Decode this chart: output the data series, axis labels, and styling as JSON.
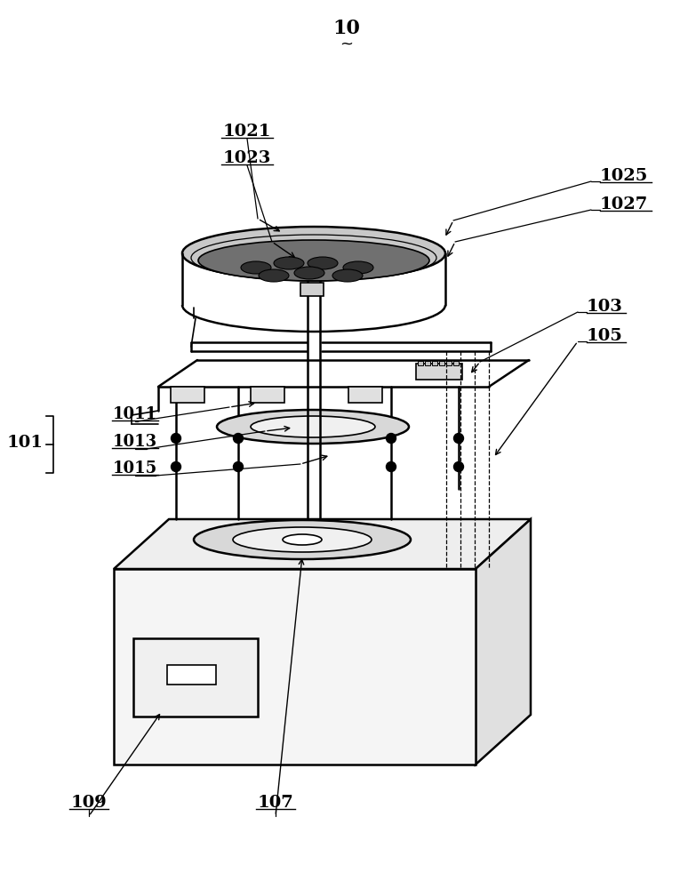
{
  "bg_color": "#ffffff",
  "line_color": "#000000",
  "figsize": [
    7.83,
    10.0
  ],
  "dpi": 100,
  "title": "10"
}
